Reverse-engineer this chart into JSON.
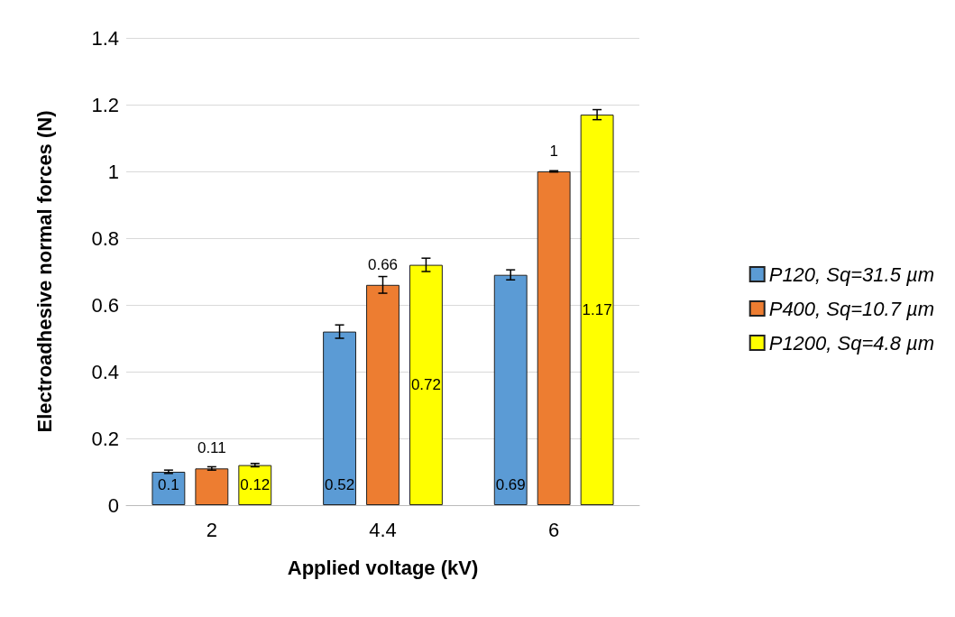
{
  "chart_data": {
    "type": "bar",
    "xlabel": "Applied voltage (kV)",
    "ylabel": "Electroadhesive normal forces (N)",
    "categories": [
      "2",
      "4.4",
      "6"
    ],
    "series": [
      {
        "name": "P120, Sq=31.5 µm",
        "color": "#5b9bd5",
        "values": [
          0.1,
          0.52,
          0.69
        ],
        "errors": [
          0.005,
          0.02,
          0.015
        ]
      },
      {
        "name": "P400, Sq=10.7 µm",
        "color": "#ed7d31",
        "values": [
          0.11,
          0.66,
          1
        ],
        "errors": [
          0.005,
          0.025,
          0.002
        ]
      },
      {
        "name": "P1200, Sq=4.8 µm",
        "color": "#ffff00",
        "values": [
          0.12,
          0.72,
          1.17
        ],
        "errors": [
          0.005,
          0.02,
          0.015
        ]
      }
    ],
    "ylim": [
      0,
      1.4
    ],
    "yticks": [
      0,
      0.2,
      0.4,
      0.6,
      0.8,
      1,
      1.2,
      1.4
    ],
    "grid": "y",
    "legend": "right",
    "data_labels": true
  }
}
